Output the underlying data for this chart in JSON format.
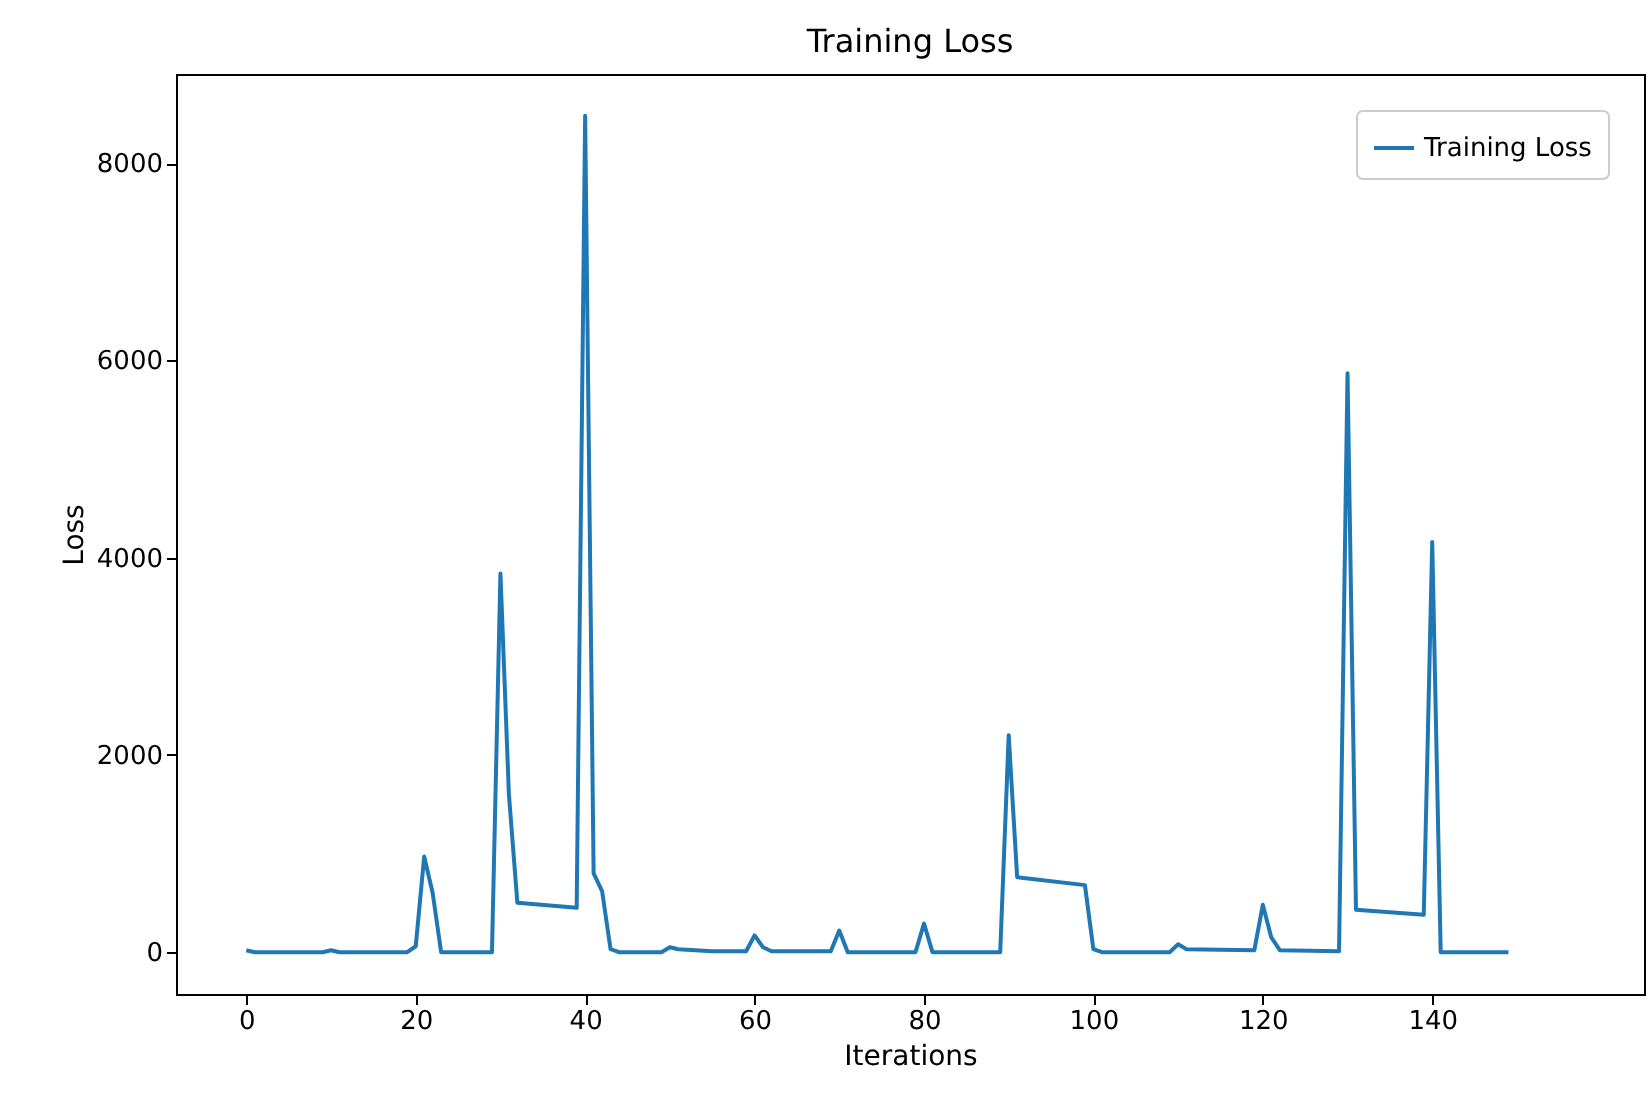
{
  "chart_data": {
    "type": "line",
    "title": "Training Loss",
    "xlabel": "Iterations",
    "ylabel": "Loss",
    "xlim": [
      -8.3,
      165
    ],
    "ylim": [
      -424,
      8904
    ],
    "xticks": [
      0,
      20,
      40,
      60,
      80,
      100,
      120,
      140
    ],
    "yticks": [
      0,
      2000,
      4000,
      6000,
      8000
    ],
    "grid": false,
    "legend": "top right",
    "series": [
      {
        "name": "Training Loss",
        "color": "#1f77b4",
        "x": [
          0,
          1,
          9,
          10,
          11,
          19,
          20,
          21,
          22,
          23,
          29,
          30,
          31,
          32,
          39,
          40,
          41,
          42,
          43,
          44,
          49,
          50,
          51,
          55,
          59,
          60,
          61,
          62,
          69,
          70,
          71,
          79,
          80,
          81,
          89,
          90,
          91,
          99,
          100,
          101,
          109,
          110,
          111,
          119,
          120,
          121,
          122,
          129,
          130,
          131,
          139,
          140,
          141,
          149
        ],
        "values": [
          20,
          0,
          0,
          20,
          0,
          0,
          60,
          970,
          600,
          0,
          0,
          3840,
          1600,
          500,
          450,
          8480,
          800,
          620,
          30,
          0,
          0,
          50,
          30,
          10,
          10,
          170,
          50,
          10,
          10,
          220,
          0,
          0,
          290,
          0,
          0,
          2200,
          760,
          680,
          30,
          0,
          0,
          80,
          30,
          20,
          480,
          150,
          20,
          10,
          5870,
          430,
          380,
          4160,
          0,
          0
        ]
      }
    ]
  }
}
